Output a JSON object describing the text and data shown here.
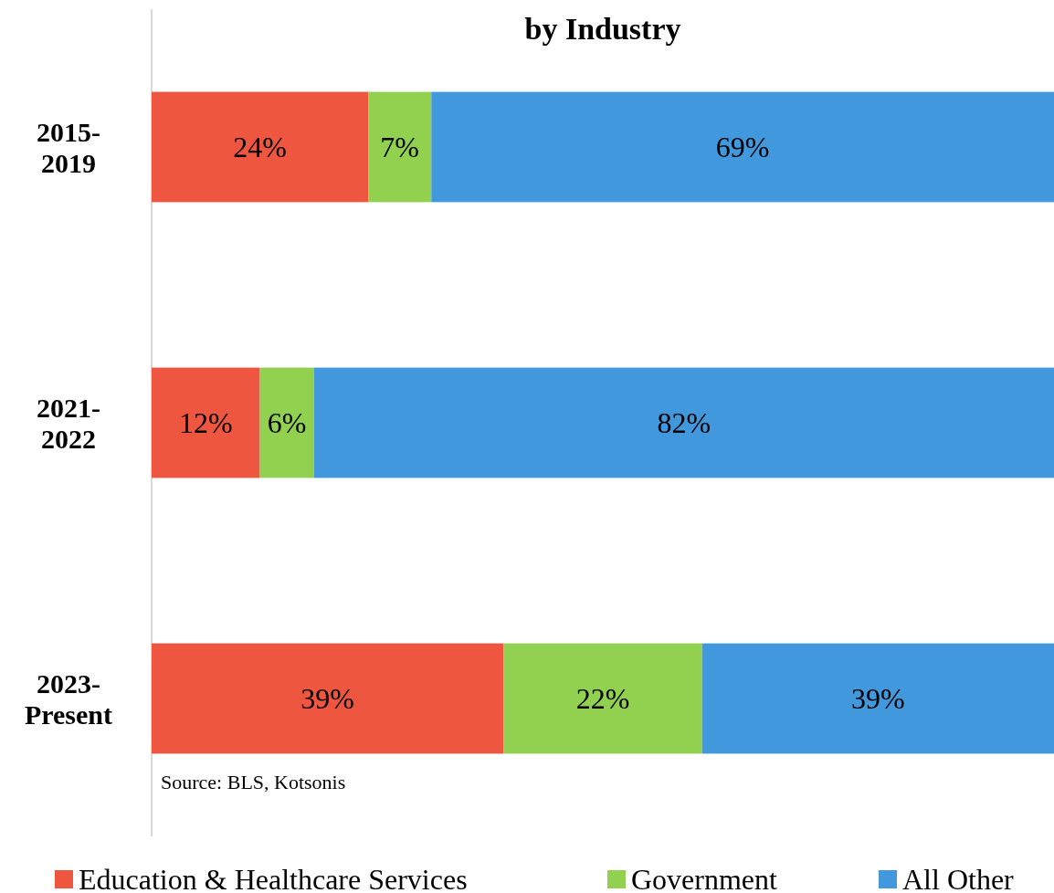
{
  "chart_data": {
    "type": "bar",
    "orientation": "horizontal",
    "stacked": true,
    "title": "by Industry",
    "categories": [
      "2015-2019",
      "2021-2022",
      "2023-Present"
    ],
    "series": [
      {
        "name": "Education & Healthcare Services",
        "color": "#ef5640",
        "values": [
          24,
          12,
          39
        ],
        "value_labels": [
          "24%",
          "12%",
          "39%"
        ]
      },
      {
        "name": "Government",
        "color": "#92d050",
        "values": [
          7,
          6,
          22
        ],
        "value_labels": [
          "7%",
          "6%",
          "22%"
        ]
      },
      {
        "name": "All Other",
        "color": "#4198dc",
        "values": [
          69,
          82,
          39
        ],
        "value_labels": [
          "69%",
          "82%",
          "39%"
        ]
      }
    ],
    "tick_labels": "y",
    "legend": "bottom",
    "annotations": [
      "Source: BLS, Kotsonis"
    ]
  }
}
